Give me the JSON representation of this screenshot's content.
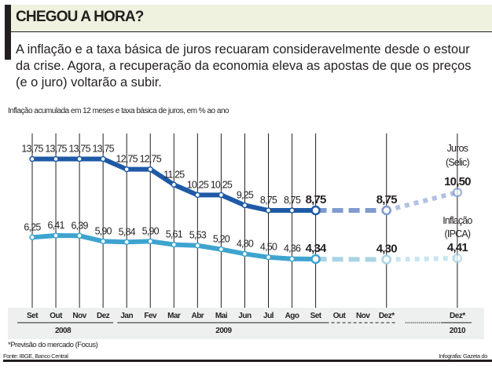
{
  "header": {
    "title": "CHEGOU A HORA?",
    "lead_lines": [
      "A inflação e a taxa básica de juros recuaram consideravelmente desde o estour",
      "da crise. Agora, a recuperação da economia eleva as apostas de que os preços",
      "(e o juro) voltarão a subir."
    ]
  },
  "footer": {
    "footnote": "*Previsão do mercado (Focus)",
    "source": "Fonte: IBGE, Banco Central",
    "credit": "Infografia: Gazeta do"
  },
  "colors": {
    "juros": "#1f5aa6",
    "juros_forecast": "#7f9bcf",
    "inflacao": "#3ea4cf",
    "inflacao_forecast": "#a8d4e6",
    "header_bg": "#eef2de",
    "axis_band": "#eef0f0"
  },
  "chart_data": {
    "type": "line",
    "title": "Inflação acumulada em 12 meses e taxa básica de juros, em % ao ano",
    "xlabel": "",
    "ylabel": "",
    "ylim": [
      3,
      15
    ],
    "grid": "vertical lines at labelled months",
    "categories": [
      "Set",
      "Out",
      "Nov",
      "Dez",
      "Jan",
      "Fev",
      "Mar",
      "Abr",
      "Mai",
      "Jun",
      "Jul",
      "Ago",
      "Set",
      "Out",
      "Nov",
      "Dez*",
      "Dez*"
    ],
    "category_slots": [
      0,
      1,
      2,
      3,
      4,
      5,
      6,
      7,
      8,
      9,
      10,
      11,
      12,
      13,
      14,
      15,
      18
    ],
    "gridline_slots": [
      0,
      1,
      2,
      3,
      4,
      5,
      6,
      7,
      8,
      9,
      10,
      11,
      12,
      15,
      18
    ],
    "years": [
      {
        "label": "2008",
        "from": 0,
        "to": 3
      },
      {
        "label": "2009",
        "from": 4,
        "to": 15
      },
      {
        "label": "2010",
        "from": 16,
        "to": 18
      }
    ],
    "series": [
      {
        "name": "Juros (Selic)",
        "legend": [
          "Juros",
          "(Selic)"
        ],
        "actual": {
          "slots": [
            0,
            1,
            2,
            3,
            4,
            5,
            6,
            7,
            8,
            9,
            10,
            11,
            12
          ],
          "values": [
            13.75,
            13.75,
            13.75,
            13.75,
            12.75,
            12.75,
            11.25,
            10.25,
            10.25,
            9.25,
            8.75,
            8.75,
            8.75
          ],
          "labels": [
            "13,75",
            "13,75",
            "13,75",
            "13,75",
            "12,75",
            "12,75",
            "11,25",
            "10,25",
            "10,25",
            "9,25",
            "8,75",
            "8,75",
            "8,75"
          ]
        },
        "forecast": {
          "slots": [
            12,
            15,
            18
          ],
          "values": [
            8.75,
            8.75,
            10.5
          ],
          "labels": [
            "",
            "8,75",
            "10,50"
          ]
        }
      },
      {
        "name": "Inflação (IPCA)",
        "legend": [
          "Inflação",
          "(IPCA)"
        ],
        "actual": {
          "slots": [
            0,
            1,
            2,
            3,
            4,
            5,
            6,
            7,
            8,
            9,
            10,
            11,
            12
          ],
          "values": [
            6.25,
            6.41,
            6.39,
            5.9,
            5.84,
            5.9,
            5.61,
            5.53,
            5.2,
            4.8,
            4.5,
            4.36,
            4.34
          ],
          "labels": [
            "6,25",
            "6,41",
            "6,39",
            "5,90",
            "5,84",
            "5,90",
            "5,61",
            "5,53",
            "5,20",
            "4,80",
            "4,50",
            "4,36",
            "4,34"
          ]
        },
        "forecast": {
          "slots": [
            12,
            15,
            18
          ],
          "values": [
            4.34,
            4.3,
            4.41
          ],
          "labels": [
            "",
            "4,30",
            "4,41"
          ]
        }
      }
    ]
  }
}
